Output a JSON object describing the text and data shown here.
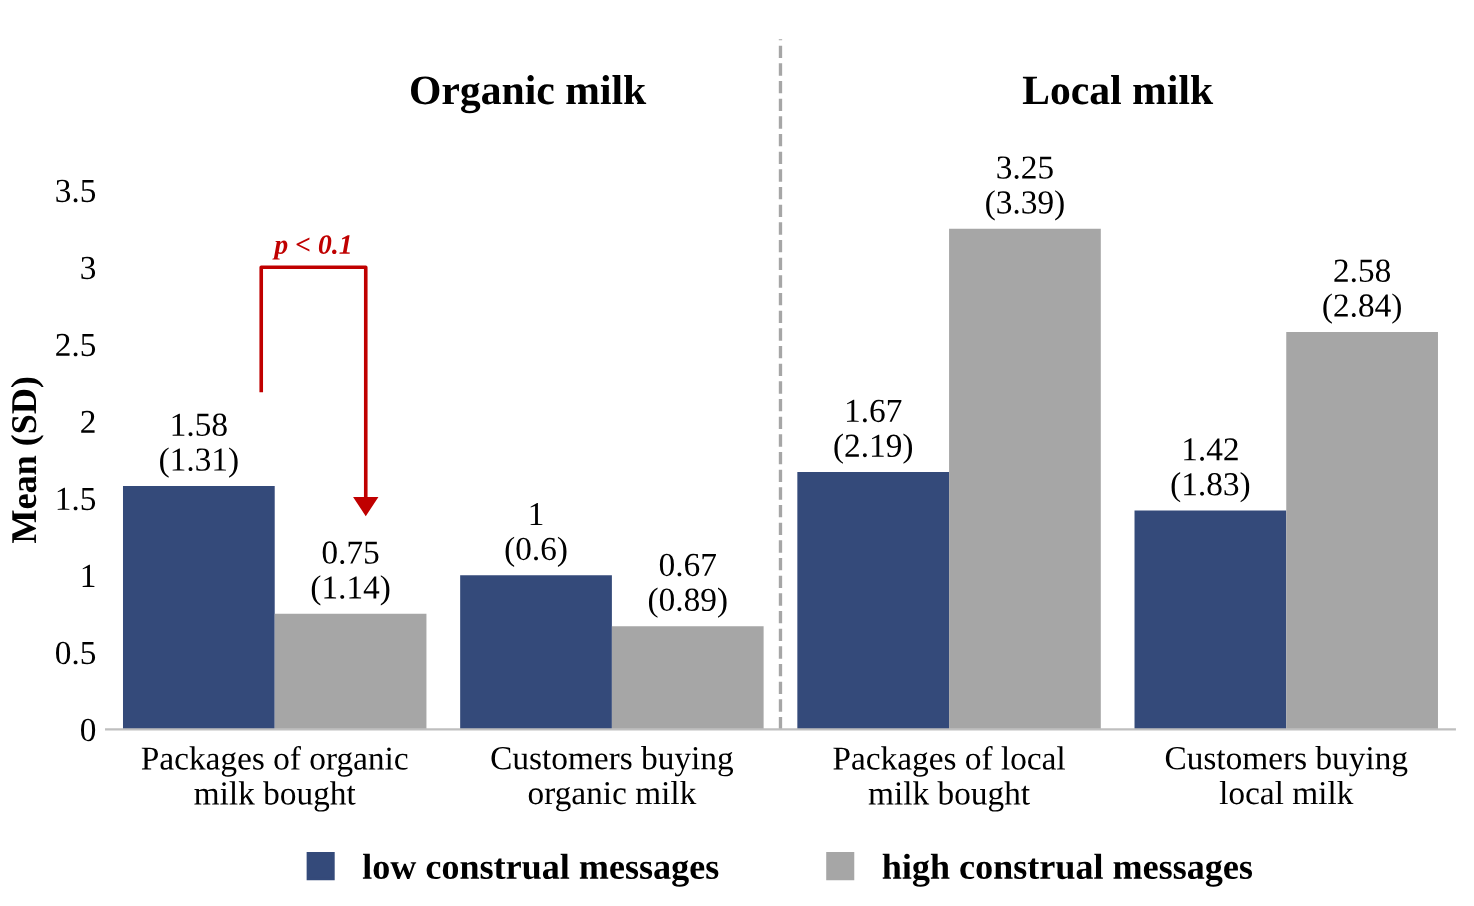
{
  "chart_data": {
    "type": "bar",
    "categories": [
      "Packages of organic\nmilk bought",
      "Customers buying\norganic milk",
      "Packages of local\nmilk bought",
      "Customers buying\nlocal milk"
    ],
    "ylabel": "Mean (SD)",
    "series": [
      {
        "name": "low construal messages",
        "color": "#344a7a",
        "values": [
          1.58,
          1,
          1.67,
          1.42
        ],
        "value_labels": [
          "1.58\n(1.31)",
          "1\n(0.6)",
          "1.67\n(2.19)",
          "1.42\n(1.83)"
        ]
      },
      {
        "name": "high construal messages",
        "color": "#a6a6a6",
        "values": [
          0.75,
          0.67,
          3.25,
          2.58
        ],
        "value_labels": [
          "0.75\n(1.14)",
          "0.67\n(0.89)",
          "3.25\n(3.39)",
          "2.58\n(2.84)"
        ]
      }
    ],
    "ylim": [
      0,
      3.5
    ],
    "yticks": [
      0,
      0.5,
      1,
      1.5,
      2,
      2.5,
      3,
      3.5
    ],
    "grid": false,
    "legend": "bottom",
    "annotations": [
      "Organic milk",
      "Local milk",
      "p < 0.1"
    ]
  }
}
